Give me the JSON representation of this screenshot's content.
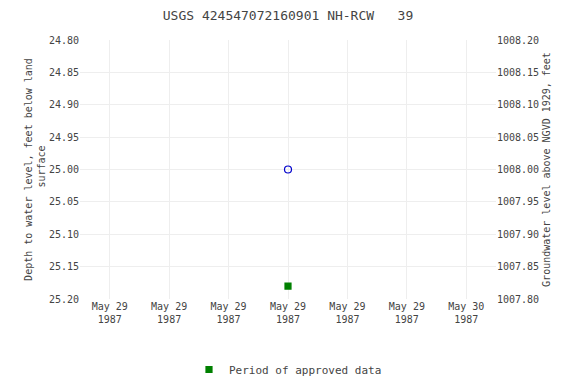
{
  "chart_data": {
    "type": "scatter",
    "title": "USGS 424547072160901 NH-RCW   39",
    "ylabel": "Depth to water level, feet below land\n surface",
    "y2label": "Groundwater level above NGVD 1929, feet",
    "categories": [
      "May 29\n1987",
      "May 29\n1987",
      "May 29\n1987",
      "May 29\n1987",
      "May 29\n1987",
      "May 29\n1987",
      "May 30\n1987"
    ],
    "series": [
      {
        "color": "#0000cc",
        "marker": "circle-open",
        "values": [
          null,
          null,
          null,
          25.0,
          null,
          null,
          null
        ]
      },
      {
        "name": "Period of approved data",
        "color": "#008000",
        "marker": "square",
        "values": [
          null,
          null,
          null,
          25.18,
          null,
          null,
          null
        ]
      }
    ],
    "ylim": [
      25.2,
      24.8
    ],
    "yticks": [
      {
        "value": 24.8,
        "label": "24.80"
      },
      24.85,
      {
        "value": 24.9,
        "label": "24.90"
      },
      24.95,
      {
        "value": 25.0,
        "label": "25.00"
      },
      25.05,
      {
        "value": 25.1,
        "label": "25.10"
      },
      25.15,
      {
        "value": 25.2,
        "label": "25.20"
      }
    ],
    "y2lim": [
      1007.8,
      1008.2
    ],
    "y2ticks": [
      {
        "value": 1007.8,
        "label": "1007.80"
      },
      1007.85,
      {
        "value": 1007.9,
        "label": "1007.90"
      },
      1007.95,
      {
        "value": 1008.0,
        "label": "1008.00"
      },
      1008.05,
      {
        "value": 1008.1,
        "label": "1008.10"
      },
      1008.15,
      {
        "value": 1008.2,
        "label": "1008.20"
      }
    ],
    "grid": true,
    "legend": "bottom"
  }
}
